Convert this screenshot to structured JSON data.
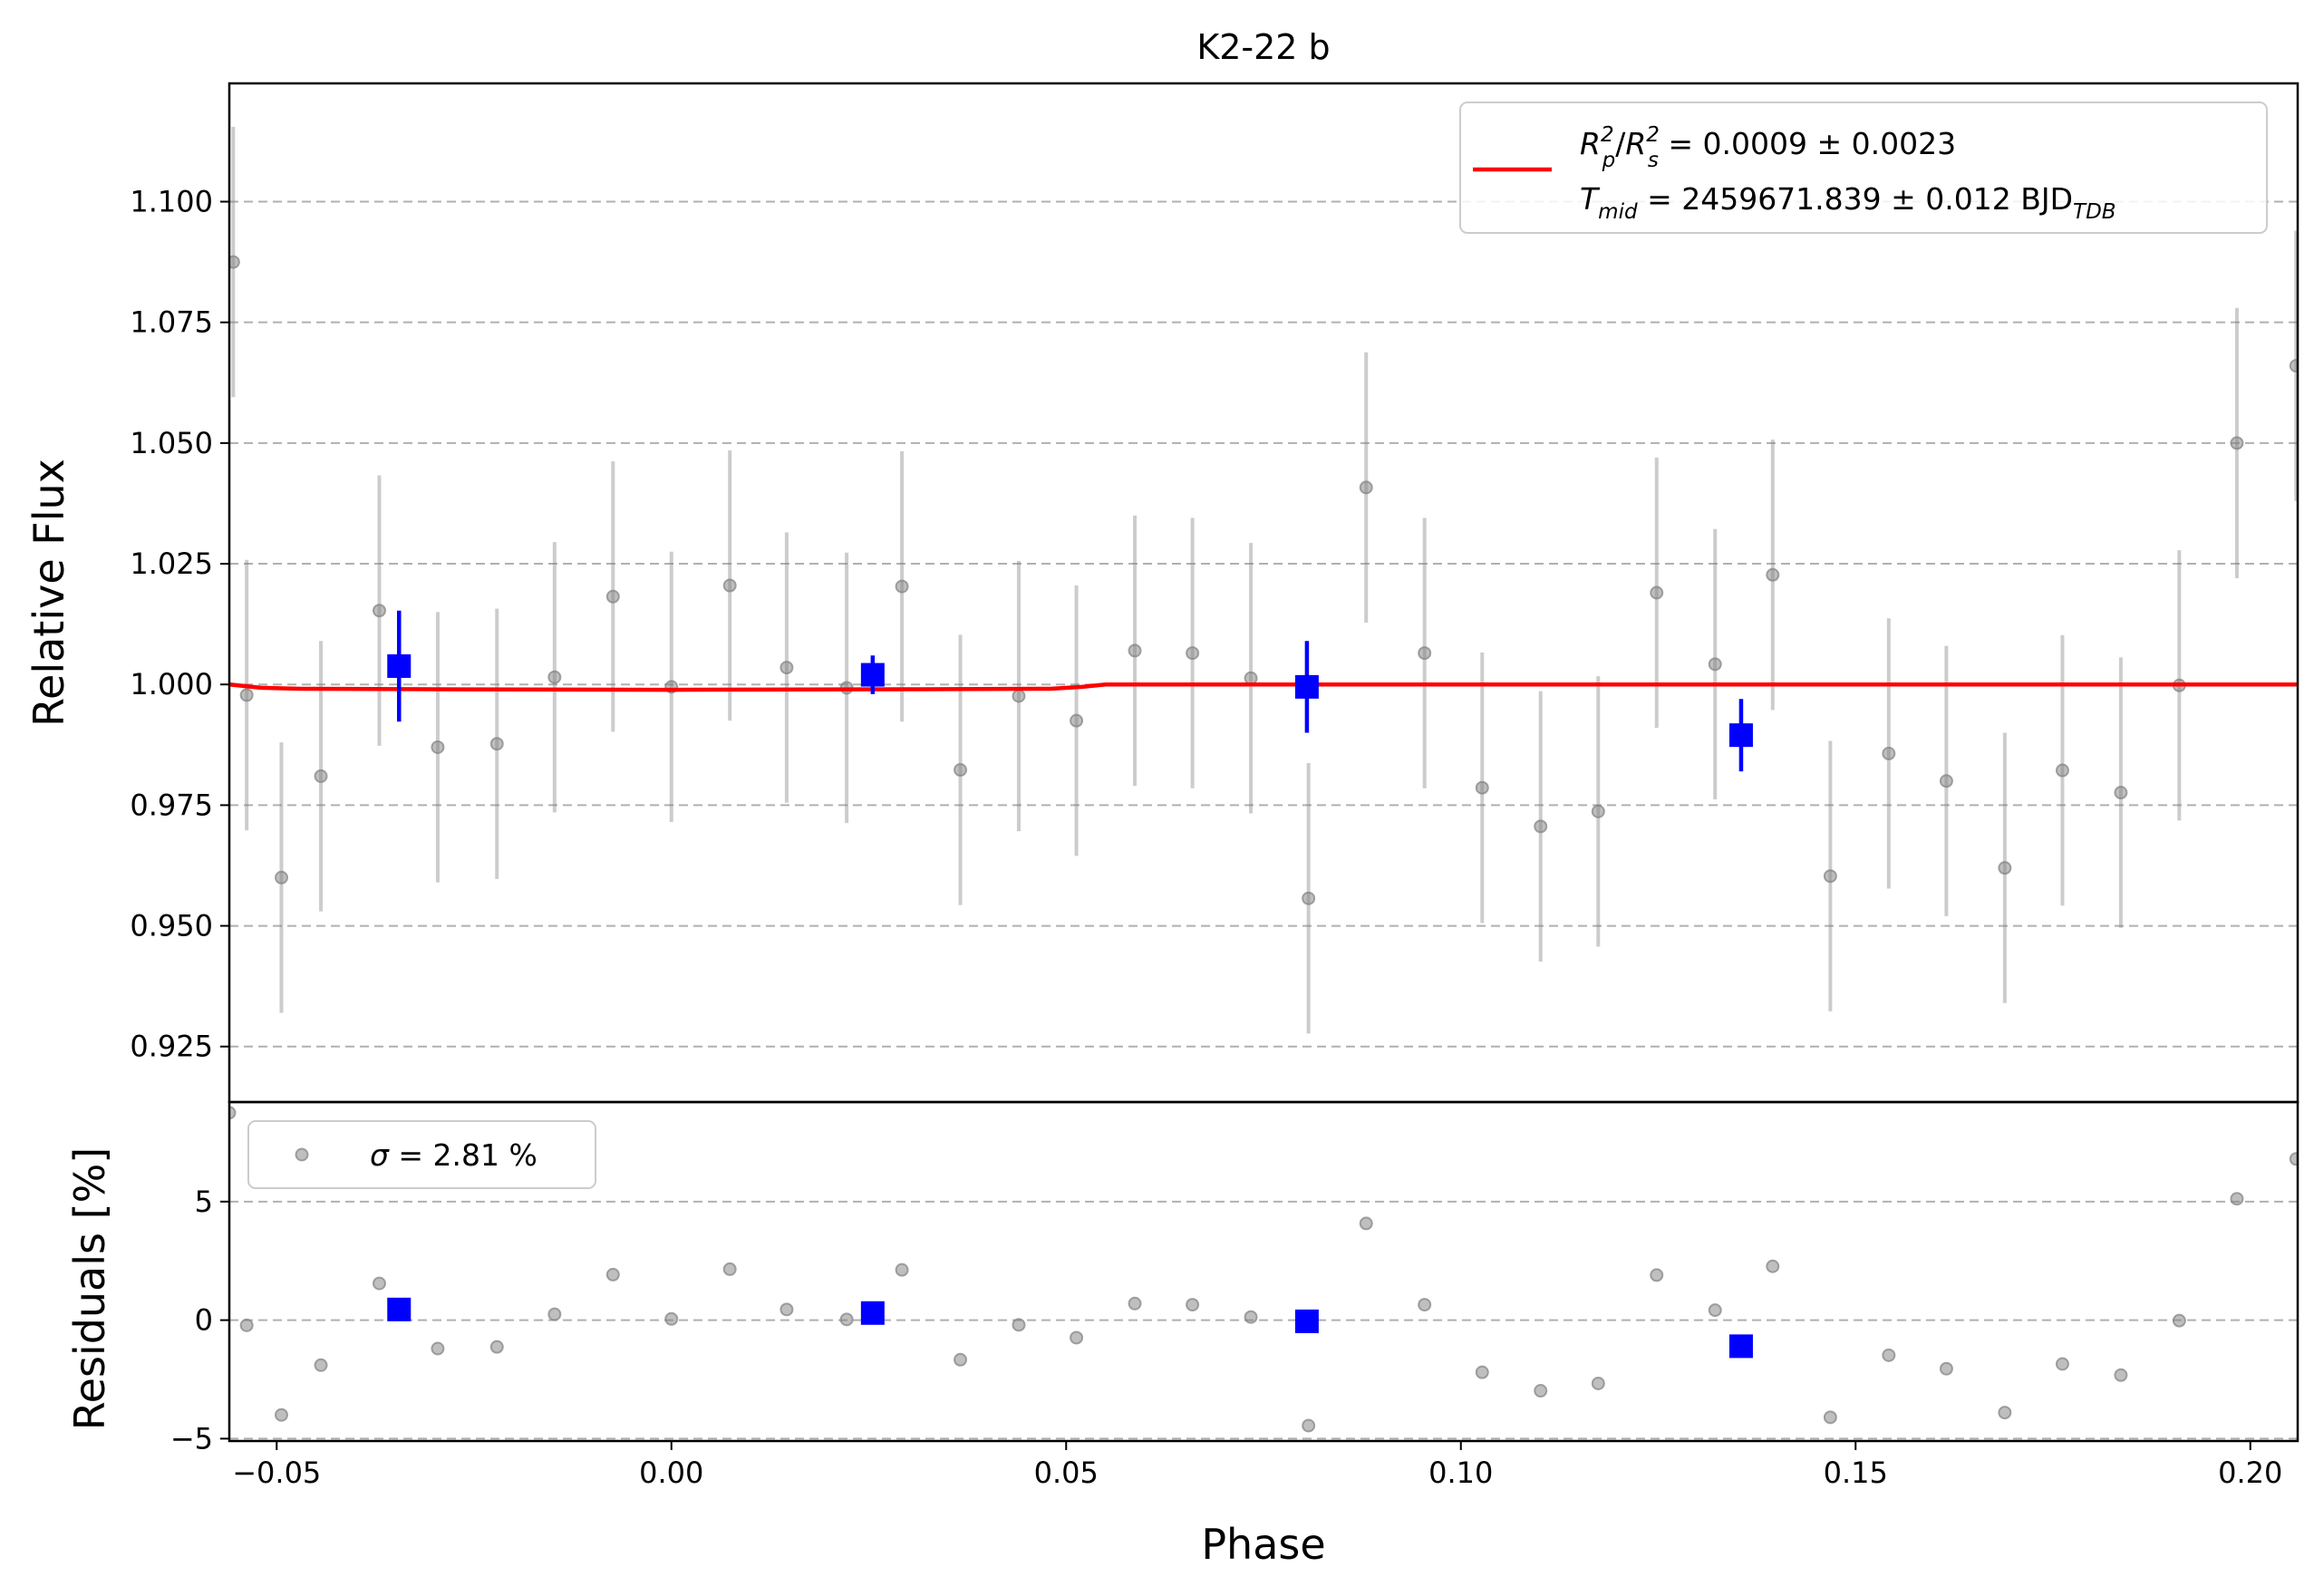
{
  "chart_data": [
    {
      "type": "scatter",
      "title": "K2-22 b",
      "xlabel": "",
      "ylabel": "Relative Flux",
      "xlim": [
        -0.056,
        0.206
      ],
      "ylim": [
        0.9135,
        1.1245
      ],
      "y_ticks": [
        0.925,
        0.95,
        0.975,
        1.0,
        1.025,
        1.05,
        1.075,
        1.1
      ],
      "y_tick_labels": [
        "0.925",
        "0.950",
        "0.975",
        "1.000",
        "1.025",
        "1.050",
        "1.075",
        "1.100"
      ],
      "grid": "horizontal dashed",
      "legend": {
        "placement": "top-right",
        "line1": {
          "r": "R",
          "rsub": "p",
          "sup": "2",
          "slash": "/",
          "s": "R",
          "ssub": "s",
          "value": " = 0.0009 ± 0.0023"
        },
        "line2": {
          "t": "T",
          "tsub": "mid",
          "value": " = 2459671.839 ± 0.012 BJD",
          "unitsub": "TDB"
        }
      },
      "series": [
        {
          "kind": "data",
          "color": "#808080",
          "error": 0.028,
          "points": [
            [
              -0.0555,
              1.0875
            ],
            [
              -0.0538,
              0.9978
            ],
            [
              -0.0494,
              0.96
            ],
            [
              -0.0444,
              0.981
            ],
            [
              -0.037,
              1.0153
            ],
            [
              -0.0296,
              0.987
            ],
            [
              -0.0221,
              0.9877
            ],
            [
              -0.0148,
              1.0015
            ],
            [
              -0.0074,
              1.0182
            ],
            [
              0.0,
              0.9995
            ],
            [
              0.0074,
              1.0205
            ],
            [
              0.0146,
              1.0035
            ],
            [
              0.0222,
              0.9993
            ],
            [
              0.0292,
              1.0203
            ],
            [
              0.0366,
              0.9823
            ],
            [
              0.044,
              0.9976
            ],
            [
              0.0513,
              0.9925
            ],
            [
              0.0587,
              1.007
            ],
            [
              0.066,
              1.0065
            ],
            [
              0.0734,
              1.0013
            ],
            [
              0.0807,
              0.9557
            ],
            [
              0.088,
              1.0408
            ],
            [
              0.0954,
              1.0065
            ],
            [
              0.1027,
              0.9786
            ],
            [
              0.1101,
              0.9706
            ],
            [
              0.1174,
              0.9737
            ],
            [
              0.1248,
              1.019
            ],
            [
              0.1322,
              1.0042
            ],
            [
              0.1395,
              1.0227
            ],
            [
              0.1468,
              0.9603
            ],
            [
              0.1542,
              0.9857
            ],
            [
              0.1615,
              0.98
            ],
            [
              0.1689,
              0.962
            ],
            [
              0.1762,
              0.9822
            ],
            [
              0.1836,
              0.9776
            ],
            [
              0.191,
              0.9998
            ],
            [
              0.1983,
              1.05
            ],
            [
              0.2058,
              1.066
            ]
          ]
        },
        {
          "kind": "binned",
          "color": "#0000ff",
          "points": [
            [
              -0.0345,
              1.0038,
              0.0115
            ],
            [
              0.0255,
              1.002,
              0.004
            ],
            [
              0.0805,
              0.9995,
              0.0095
            ],
            [
              0.1355,
              0.9895,
              0.0075
            ]
          ]
        },
        {
          "kind": "model",
          "color": "#ff0000",
          "points": [
            [
              -0.056,
              1.0
            ],
            [
              -0.052,
              0.9993
            ],
            [
              -0.047,
              0.9991
            ],
            [
              -0.03,
              0.999
            ],
            [
              0.0,
              0.9989
            ],
            [
              0.03,
              0.999
            ],
            [
              0.048,
              0.9991
            ],
            [
              0.052,
              0.9995
            ],
            [
              0.055,
              1.0
            ],
            [
              0.206,
              1.0
            ]
          ]
        }
      ]
    },
    {
      "type": "scatter",
      "title": "",
      "xlabel": "Phase",
      "ylabel": "Residuals [%]",
      "xlim": [
        -0.056,
        0.206
      ],
      "ylim": [
        -5.1,
        9.2
      ],
      "x_ticks": [
        -0.05,
        0.0,
        0.05,
        0.1,
        0.15,
        0.2
      ],
      "x_tick_labels": [
        "−0.05",
        "0.00",
        "0.05",
        "0.10",
        "0.15",
        "0.20"
      ],
      "y_ticks": [
        -5,
        0,
        5
      ],
      "y_tick_labels": [
        "−5",
        "0",
        "5"
      ],
      "grid": "horizontal dashed",
      "legend": {
        "placement": "top-left",
        "sigma": "σ",
        "value": " = 2.81 %"
      },
      "series": [
        {
          "kind": "residuals",
          "color": "#808080",
          "points": [
            [
              -0.056,
              8.75
            ],
            [
              -0.0538,
              -0.22
            ],
            [
              -0.0494,
              -4.0
            ],
            [
              -0.0444,
              -1.9
            ],
            [
              -0.037,
              1.55
            ],
            [
              -0.0296,
              -1.2
            ],
            [
              -0.0221,
              -1.13
            ],
            [
              -0.0148,
              0.25
            ],
            [
              -0.0074,
              1.92
            ],
            [
              0.0,
              0.05
            ],
            [
              0.0074,
              2.15
            ],
            [
              0.0146,
              0.45
            ],
            [
              0.0222,
              0.03
            ],
            [
              0.0292,
              2.12
            ],
            [
              0.0366,
              -1.67
            ],
            [
              0.044,
              -0.2
            ],
            [
              0.0513,
              -0.74
            ],
            [
              0.0587,
              0.7
            ],
            [
              0.066,
              0.65
            ],
            [
              0.0734,
              0.13
            ],
            [
              0.0807,
              -4.45
            ],
            [
              0.088,
              4.08
            ],
            [
              0.0954,
              0.65
            ],
            [
              0.1027,
              -2.2
            ],
            [
              0.1101,
              -2.98
            ],
            [
              0.1174,
              -2.67
            ],
            [
              0.1248,
              1.9
            ],
            [
              0.1322,
              0.42
            ],
            [
              0.1395,
              2.27
            ],
            [
              0.1468,
              -4.1
            ],
            [
              0.1542,
              -1.48
            ],
            [
              0.1615,
              -2.05
            ],
            [
              0.1689,
              -3.9
            ],
            [
              0.1762,
              -1.85
            ],
            [
              0.1836,
              -2.32
            ],
            [
              0.191,
              -0.02
            ],
            [
              0.1983,
              5.12
            ],
            [
              0.2058,
              6.8
            ]
          ]
        },
        {
          "kind": "binned",
          "color": "#0000ff",
          "points": [
            [
              -0.0345,
              0.45
            ],
            [
              0.0255,
              0.3
            ],
            [
              0.0805,
              -0.05
            ],
            [
              0.1355,
              -1.1
            ]
          ]
        }
      ]
    }
  ]
}
